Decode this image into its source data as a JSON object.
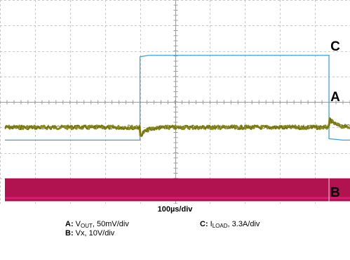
{
  "chart_data": {
    "type": "line",
    "title": "",
    "grid": true,
    "grid_divisions": {
      "x": 10,
      "y": 8
    },
    "x_scale": "100µs/div",
    "channels": [
      {
        "id": "C",
        "color": "#3aa3d6",
        "quantity": "I",
        "quantity_sub": "LOAD",
        "scale": "3.3A/div",
        "level_low_div": 2.5,
        "level_high_div": 5.8,
        "step_up_div": 4.0,
        "step_down_div": 9.4
      },
      {
        "id": "A",
        "color": "#8a8a1e",
        "quantity": "V",
        "quantity_sub": "OUT",
        "scale": "50mV/div",
        "level_div": 3.0,
        "undershoot_div": -0.35,
        "overshoot_div": 0.35,
        "events_div": [
          4.0,
          9.4
        ]
      },
      {
        "id": "B",
        "color": "#b0134f",
        "quantity": "Vx",
        "quantity_sub": "",
        "scale": "10V/div",
        "band_low_div": 0.1,
        "band_high_div": 1.0
      }
    ]
  },
  "labels": {
    "timebase": "100µs/div",
    "a_key": "A:",
    "a_quantity": "V",
    "a_sub": "OUT",
    "a_scale": ", 50mV/div",
    "b_key": "B:",
    "b_text": " Vx, 10V/div",
    "c_key": "C:",
    "c_quantity": "I",
    "c_sub": "LOAD",
    "c_scale": ", 3.3A/div",
    "marker_c": "C",
    "marker_a": "A",
    "marker_b": "B"
  }
}
